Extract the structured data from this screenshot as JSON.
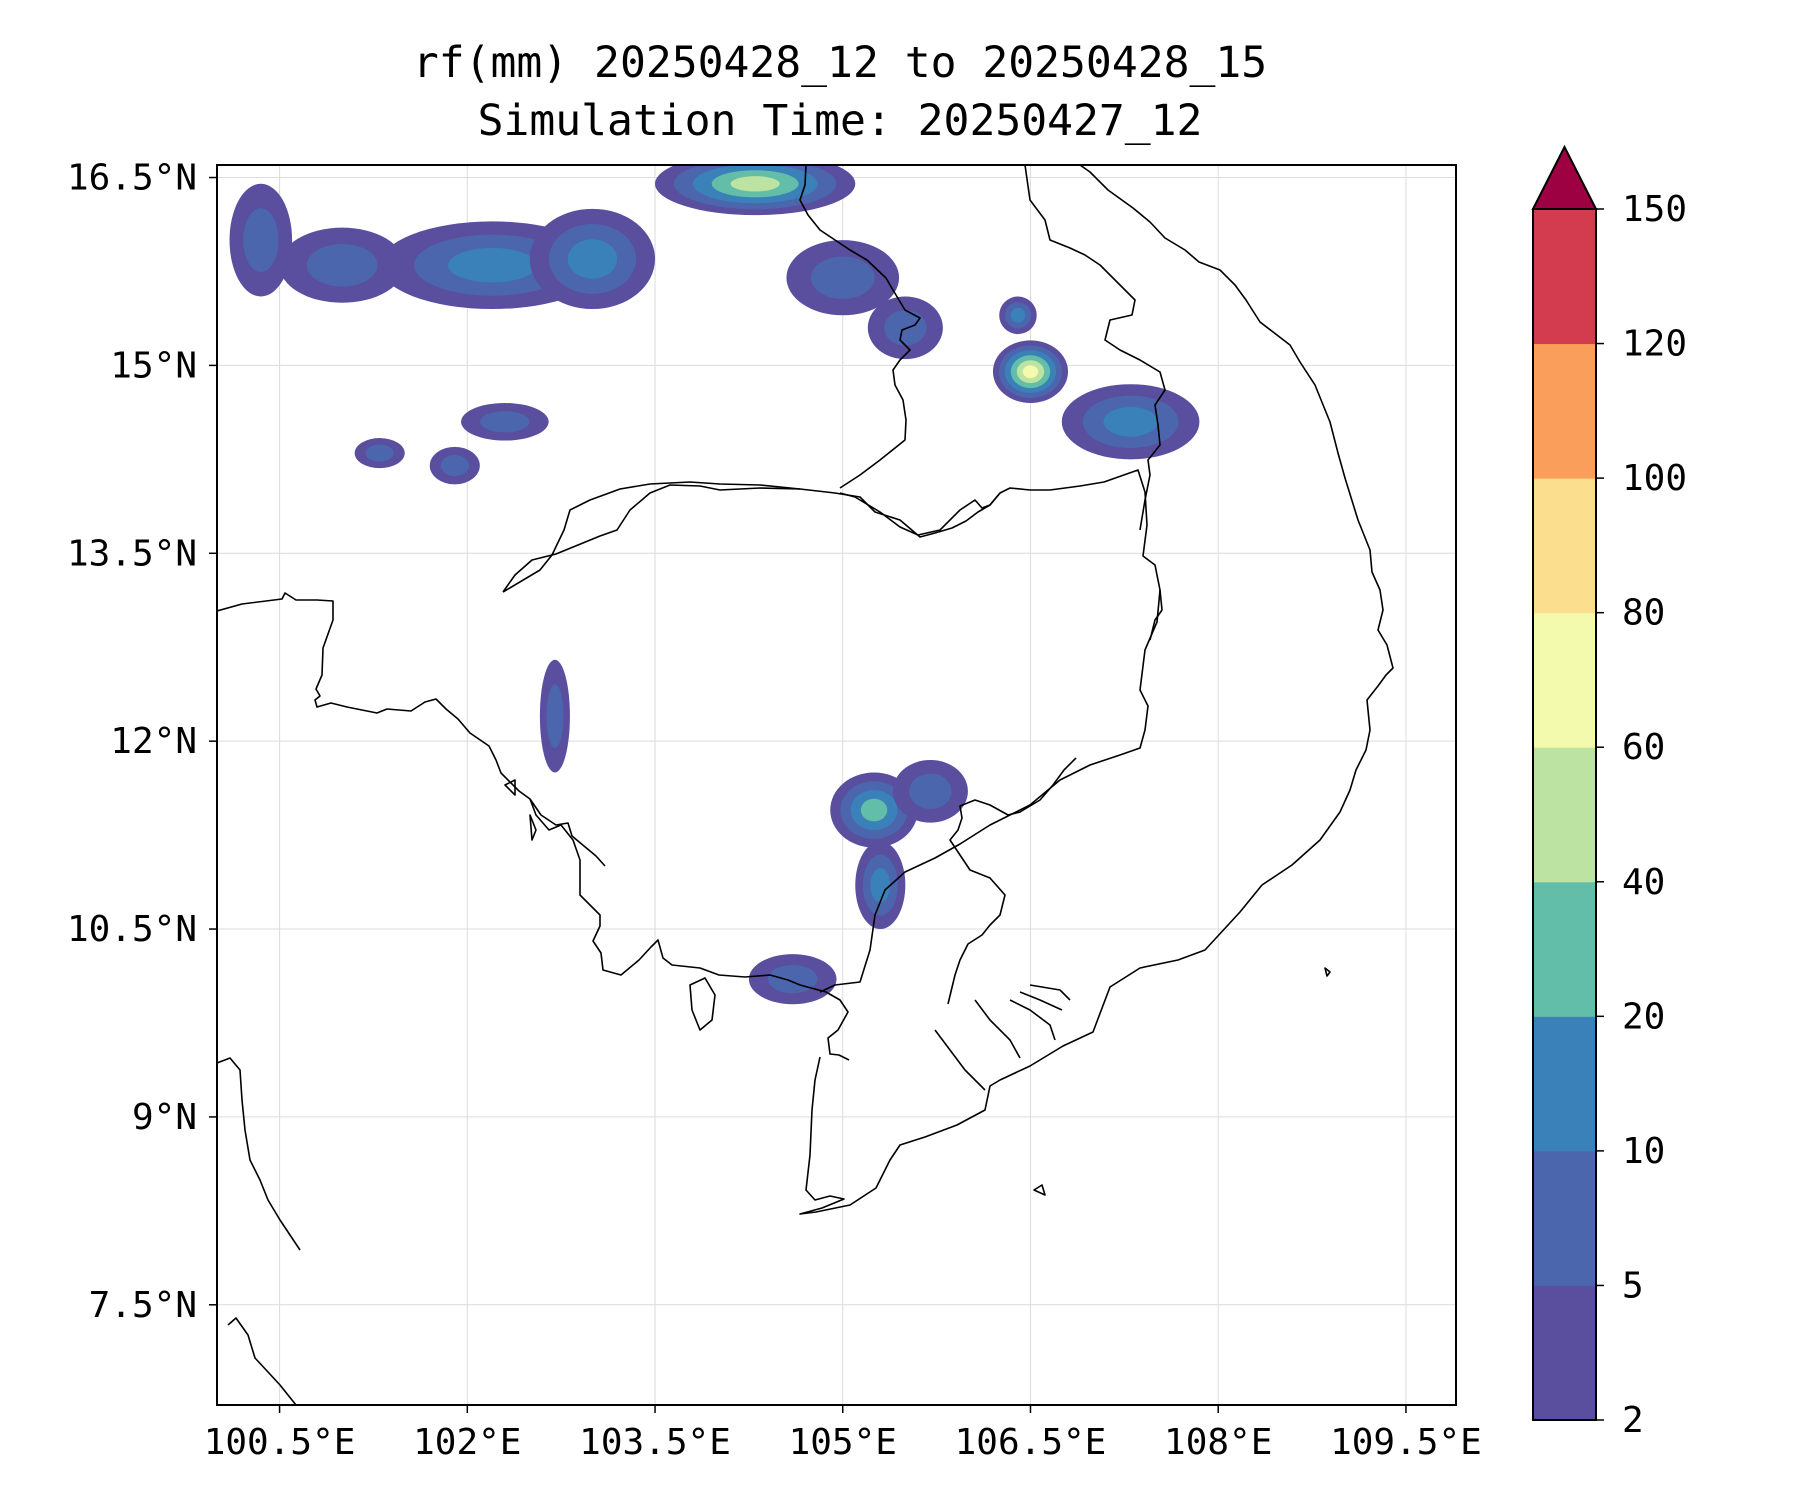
{
  "title": {
    "line1": "rf(mm) 20250428_12 to 20250428_15",
    "line2": "Simulation Time: 20250427_12"
  },
  "map": {
    "projection": "PlateCarree",
    "lon_range": [
      100.0,
      109.9
    ],
    "lat_range": [
      6.7,
      16.6
    ],
    "grid": true,
    "lon_ticks": [
      {
        "value": 100.5,
        "label": "100.5°E"
      },
      {
        "value": 102,
        "label": "102°E"
      },
      {
        "value": 103.5,
        "label": "103.5°E"
      },
      {
        "value": 105,
        "label": "105°E"
      },
      {
        "value": 106.5,
        "label": "106.5°E"
      },
      {
        "value": 108,
        "label": "108°E"
      },
      {
        "value": 109.5,
        "label": "109.5°E"
      }
    ],
    "lat_ticks": [
      {
        "value": 16.5,
        "label": "16.5°N"
      },
      {
        "value": 15,
        "label": "15°N"
      },
      {
        "value": 13.5,
        "label": "13.5°N"
      },
      {
        "value": 12,
        "label": "12°N"
      },
      {
        "value": 10.5,
        "label": "10.5°N"
      },
      {
        "value": 9,
        "label": "9°N"
      },
      {
        "value": 7.5,
        "label": "7.5°N"
      }
    ]
  },
  "colorbar": {
    "levels": [
      2,
      5,
      10,
      20,
      40,
      60,
      80,
      100,
      120,
      150
    ],
    "labels": [
      "2",
      "5",
      "10",
      "20",
      "40",
      "60",
      "80",
      "100",
      "120",
      "150"
    ],
    "colors": [
      "#5a4e9f",
      "#4b66ad",
      "#3a80b9",
      "#63bea9",
      "#bde3a2",
      "#f3f9ad",
      "#fbdf8e",
      "#f99f5b",
      "#d33c4e"
    ],
    "extend_color": "#9e0142",
    "extend": "max"
  },
  "chart_data": {
    "type": "heatmap",
    "variable": "rf(mm)",
    "title": "rf(mm) 20250428_12 to 20250428_15",
    "subtitle": "Simulation Time: 20250427_12",
    "note": "Filled rainfall contours on a lon/lat map; approximate rain cells listed by center and maximum band level.",
    "cells": [
      {
        "lon": 102.2,
        "lat": 15.8,
        "rx": 0.9,
        "ry": 0.35,
        "level": 10
      },
      {
        "lon": 103.0,
        "lat": 15.85,
        "rx": 0.5,
        "ry": 0.4,
        "level": 10
      },
      {
        "lon": 101.0,
        "lat": 15.8,
        "rx": 0.5,
        "ry": 0.3,
        "level": 5
      },
      {
        "lon": 100.35,
        "lat": 16.0,
        "rx": 0.25,
        "ry": 0.45,
        "level": 5
      },
      {
        "lon": 104.3,
        "lat": 16.45,
        "rx": 0.8,
        "ry": 0.25,
        "level": 40
      },
      {
        "lon": 105.0,
        "lat": 15.7,
        "rx": 0.45,
        "ry": 0.3,
        "level": 5
      },
      {
        "lon": 105.5,
        "lat": 15.3,
        "rx": 0.3,
        "ry": 0.25,
        "level": 5
      },
      {
        "lon": 102.3,
        "lat": 14.55,
        "rx": 0.35,
        "ry": 0.15,
        "level": 5
      },
      {
        "lon": 101.3,
        "lat": 14.3,
        "rx": 0.2,
        "ry": 0.12,
        "level": 5
      },
      {
        "lon": 101.9,
        "lat": 14.2,
        "rx": 0.2,
        "ry": 0.15,
        "level": 5
      },
      {
        "lon": 106.5,
        "lat": 14.95,
        "rx": 0.3,
        "ry": 0.25,
        "level": 60
      },
      {
        "lon": 106.4,
        "lat": 15.4,
        "rx": 0.15,
        "ry": 0.15,
        "level": 10
      },
      {
        "lon": 107.3,
        "lat": 14.55,
        "rx": 0.55,
        "ry": 0.3,
        "level": 10
      },
      {
        "lon": 105.25,
        "lat": 11.45,
        "rx": 0.35,
        "ry": 0.3,
        "level": 20
      },
      {
        "lon": 105.7,
        "lat": 11.6,
        "rx": 0.3,
        "ry": 0.25,
        "level": 5
      },
      {
        "lon": 105.3,
        "lat": 10.85,
        "rx": 0.2,
        "ry": 0.35,
        "level": 10
      },
      {
        "lon": 104.6,
        "lat": 10.1,
        "rx": 0.35,
        "ry": 0.2,
        "level": 5
      },
      {
        "lon": 102.7,
        "lat": 12.2,
        "rx": 0.12,
        "ry": 0.45,
        "level": 5
      }
    ]
  }
}
